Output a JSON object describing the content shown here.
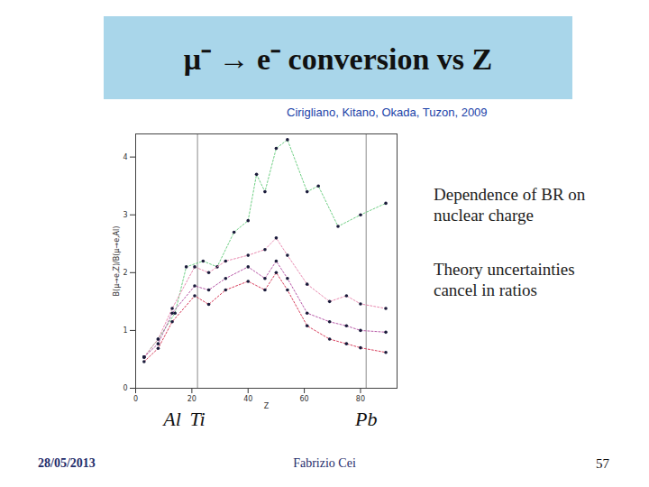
{
  "slide": {
    "title": "μ⁻ → e⁻ conversion vs Z",
    "citation": "Cirigliano, Kitano, Okada, Tuzon, 2009",
    "notes": [
      "Dependence of BR on nuclear charge",
      "Theory uncertainties cancel in ratios"
    ],
    "footer": {
      "date": "28/05/2013",
      "author": "Fabrizio Cei",
      "page": "57"
    }
  },
  "chart_data": {
    "type": "line",
    "x_label": "Z",
    "y_label": "B(μ→e,Z)/B(μ→e,Al)",
    "xlim": [
      0,
      93
    ],
    "ylim": [
      0,
      4.4
    ],
    "xticks": [
      0,
      20,
      40,
      60,
      80
    ],
    "yticks": [
      0,
      1,
      2,
      3,
      4
    ],
    "grid": false,
    "marker": "circle",
    "line_style": "dotted",
    "reference_lines": [
      22,
      82
    ],
    "element_labels": [
      {
        "z": 13,
        "label": "Al"
      },
      {
        "z": 22,
        "label": "Ti"
      },
      {
        "z": 82,
        "label": "Pb"
      }
    ],
    "series": [
      {
        "color": "#6fcf84",
        "x": [
          3,
          8,
          14,
          18,
          24,
          29,
          35,
          40,
          43,
          46,
          50,
          54,
          61,
          65,
          72,
          80,
          89
        ],
        "values": [
          0.54,
          0.85,
          1.3,
          2.1,
          2.2,
          2.1,
          2.7,
          2.9,
          3.7,
          3.4,
          4.15,
          4.3,
          3.4,
          3.5,
          2.8,
          3.0,
          3.2
        ]
      },
      {
        "color": "#e98ab0",
        "x": [
          3,
          8,
          13,
          21,
          26,
          32,
          40,
          46,
          50,
          54,
          61,
          69,
          75,
          80,
          89
        ],
        "values": [
          0.54,
          0.85,
          1.38,
          2.1,
          2.0,
          2.2,
          2.3,
          2.4,
          2.6,
          2.3,
          1.8,
          1.5,
          1.6,
          1.46,
          1.38
        ]
      },
      {
        "color": "#b85aa8",
        "x": [
          3,
          8,
          13,
          21,
          26,
          32,
          40,
          46,
          50,
          54,
          61,
          69,
          75,
          80,
          89
        ],
        "values": [
          0.54,
          0.77,
          1.3,
          1.77,
          1.7,
          1.9,
          2.1,
          1.9,
          2.2,
          1.9,
          1.3,
          1.15,
          1.08,
          1.0,
          0.97
        ]
      },
      {
        "color": "#d8405e",
        "x": [
          3,
          8,
          13,
          21,
          26,
          32,
          40,
          46,
          50,
          54,
          61,
          69,
          75,
          80,
          89
        ],
        "values": [
          0.46,
          0.69,
          1.15,
          1.6,
          1.45,
          1.7,
          1.85,
          1.7,
          2.0,
          1.7,
          1.08,
          0.85,
          0.77,
          0.7,
          0.62
        ]
      }
    ]
  }
}
